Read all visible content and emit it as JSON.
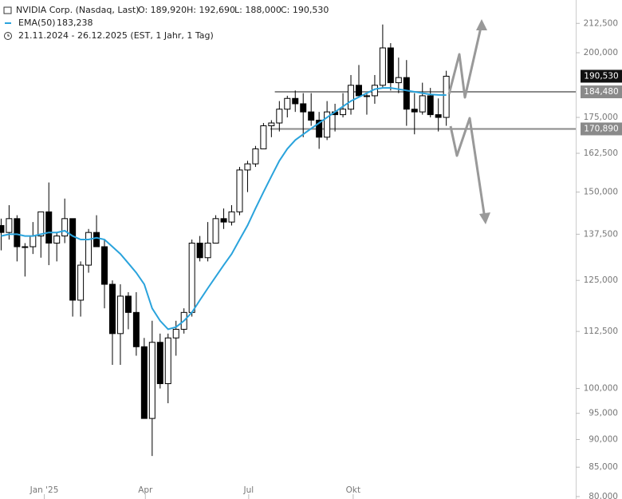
{
  "chart_data": {
    "type": "candlestick",
    "title": "NVIDIA Corp. (Nasdaq, Last)",
    "ohlc_label": {
      "open": "O: 189,920",
      "high": "H: 192,690",
      "low": "L: 188,000",
      "close": "C: 190,530"
    },
    "subtitle": "21.11.2024 - 26.12.2025  (EST, 1 Jahr, 1 Tag)",
    "log_scale": true,
    "xlim": [
      "2024-11-24",
      "2026-04-15"
    ],
    "ylim": [
      79.6,
      223
    ],
    "xticks": [
      {
        "value": "2025-01-02",
        "label": "Jan '25"
      },
      {
        "value": "2025-04-01",
        "label": "Apr"
      },
      {
        "value": "2025-07-01",
        "label": "Jul"
      },
      {
        "value": "2025-10-01",
        "label": "Okt"
      }
    ],
    "yticks": [
      {
        "value": 80,
        "label": "80,000"
      },
      {
        "value": 85,
        "label": "85,000"
      },
      {
        "value": 90,
        "label": "90,000"
      },
      {
        "value": 95,
        "label": "95,000"
      },
      {
        "value": 100,
        "label": "100,000"
      },
      {
        "value": 112.5,
        "label": "112,500"
      },
      {
        "value": 125,
        "label": "125,000"
      },
      {
        "value": 137.5,
        "label": "137,500"
      },
      {
        "value": 150,
        "label": "150,000"
      },
      {
        "value": 162.5,
        "label": "162,500"
      },
      {
        "value": 175,
        "label": "175,000"
      },
      {
        "value": 200,
        "label": "200,000"
      },
      {
        "value": 212.5,
        "label": "212,500"
      }
    ],
    "x": [
      "2024-11-25",
      "2024-12-02",
      "2024-12-09",
      "2024-12-16",
      "2024-12-23",
      "2024-12-30",
      "2025-01-06",
      "2025-01-13",
      "2025-01-20",
      "2025-01-27",
      "2025-02-03",
      "2025-02-10",
      "2025-02-17",
      "2025-02-24",
      "2025-03-03",
      "2025-03-10",
      "2025-03-17",
      "2025-03-24",
      "2025-03-31",
      "2025-04-07",
      "2025-04-14",
      "2025-04-21",
      "2025-04-28",
      "2025-05-05",
      "2025-05-12",
      "2025-05-19",
      "2025-05-26",
      "2025-06-02",
      "2025-06-09",
      "2025-06-16",
      "2025-06-23",
      "2025-06-30",
      "2025-07-07",
      "2025-07-14",
      "2025-07-21",
      "2025-07-28",
      "2025-08-04",
      "2025-08-11",
      "2025-08-18",
      "2025-08-25",
      "2025-09-01",
      "2025-09-08",
      "2025-09-15",
      "2025-09-22",
      "2025-09-29",
      "2025-10-06",
      "2025-10-13",
      "2025-10-20",
      "2025-10-27",
      "2025-11-03",
      "2025-11-10",
      "2025-11-17",
      "2025-11-24",
      "2025-12-01",
      "2025-12-08",
      "2025-12-15",
      "2025-12-22"
    ],
    "series": [
      {
        "name": "NVIDIA Corp.",
        "color": "#000000",
        "open": [
          140,
          138,
          142,
          134,
          134,
          137,
          144,
          135,
          137,
          142,
          120,
          129,
          138,
          134,
          124,
          112,
          121,
          117,
          109,
          94,
          110,
          101,
          111,
          113,
          117,
          135,
          131,
          135,
          142,
          141,
          144,
          157,
          159,
          164,
          172,
          173,
          178,
          182,
          180,
          177,
          174,
          168,
          177,
          176,
          178,
          187,
          183,
          183,
          187,
          202,
          188,
          190,
          178,
          177,
          183,
          176,
          175
        ],
        "high": [
          142,
          146,
          143,
          135,
          141,
          144,
          153,
          138,
          148,
          142,
          130,
          139,
          143,
          136,
          125,
          124,
          122,
          122,
          111,
          115,
          112,
          112,
          115,
          118,
          136,
          137,
          141,
          143,
          145,
          146,
          158,
          160,
          165,
          173,
          174,
          181,
          183,
          185,
          184,
          184,
          177,
          181,
          180,
          184,
          191,
          195,
          184,
          191,
          212,
          204,
          198,
          197,
          184,
          188,
          186,
          182,
          192.69
        ],
        "low": [
          133,
          136,
          130,
          126,
          132,
          131,
          129,
          130,
          135,
          116,
          116,
          127,
          134,
          118,
          105,
          105,
          113,
          107,
          94,
          87,
          100,
          97,
          107,
          112,
          116,
          130,
          130,
          135,
          139,
          140,
          143,
          150,
          158,
          164,
          168,
          170,
          175,
          177,
          168,
          172,
          164,
          167,
          170,
          175,
          176,
          183,
          176,
          180,
          186,
          185,
          184,
          172,
          169,
          176,
          175,
          170,
          172
        ],
        "close": [
          138,
          142,
          134,
          134,
          137,
          144,
          135,
          137,
          142,
          120,
          129,
          138,
          134,
          124,
          112,
          121,
          117,
          109,
          94,
          110,
          101,
          111,
          113,
          117,
          135,
          131,
          135,
          142,
          141,
          144,
          157,
          159,
          164,
          172,
          173,
          178,
          182,
          180,
          177,
          174,
          168,
          177,
          176,
          178,
          187,
          183,
          183,
          187,
          202,
          188,
          190,
          178,
          177,
          183,
          176,
          175,
          190.53
        ]
      },
      {
        "name": "EMA(50)",
        "value_label": "183,238",
        "color": "#2aa3dc",
        "values": [
          137,
          137.5,
          137.5,
          137,
          137,
          137.5,
          138,
          138,
          138.5,
          137,
          136,
          136,
          136.5,
          136,
          134,
          132,
          129.5,
          127,
          124,
          118,
          115,
          113,
          113.5,
          115,
          117,
          120,
          123,
          126,
          129,
          132,
          136,
          140,
          145,
          150,
          155,
          160,
          164,
          167,
          169,
          171,
          173,
          175,
          177,
          179,
          181,
          182.5,
          184,
          185.5,
          186,
          186,
          185.5,
          185,
          184.5,
          184,
          183.5,
          183.3,
          183.238
        ]
      }
    ],
    "levels": [
      {
        "value": 184.48,
        "label": "184,480",
        "start": "2025-07-24"
      },
      {
        "value": 170.89,
        "label": "170,890",
        "start": "2025-07-20"
      }
    ],
    "last_price": {
      "value": 190.53,
      "label": "190,530"
    }
  }
}
